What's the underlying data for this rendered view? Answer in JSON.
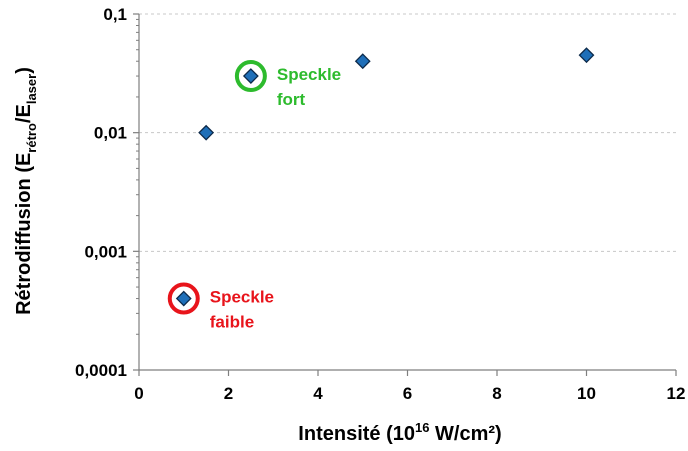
{
  "chart_data": {
    "type": "scatter",
    "xlabel_main": "Intensité (10",
    "xlabel_sup": "16",
    "xlabel_end": " W/cm²)",
    "ylabel_main": "Rétrodiffusion (E",
    "ylabel_sub1": "rétro",
    "ylabel_mid": "/E",
    "ylabel_sub2": "laser",
    "ylabel_end": ")",
    "xlim": [
      0,
      12
    ],
    "ylim": [
      0.0001,
      0.1
    ],
    "y_scale": "log",
    "grid": "horizontal dashed",
    "x_ticks": [
      "0",
      "2",
      "4",
      "6",
      "8",
      "10",
      "12"
    ],
    "y_ticks": [
      "0,0001",
      "0,001",
      "0,01",
      "0,1"
    ],
    "points": [
      {
        "x": 1,
        "y": 0.0004
      },
      {
        "x": 1.5,
        "y": 0.01
      },
      {
        "x": 2.5,
        "y": 0.03
      },
      {
        "x": 5,
        "y": 0.04
      },
      {
        "x": 10,
        "y": 0.045
      }
    ],
    "marker_color": "#1f6fb8",
    "annotations": [
      {
        "point": 0,
        "lines": [
          "Speckle",
          "faible"
        ],
        "color": "#e8141b"
      },
      {
        "point": 2,
        "lines": [
          "Speckle",
          "fort"
        ],
        "color": "#2dbb2d"
      }
    ]
  }
}
